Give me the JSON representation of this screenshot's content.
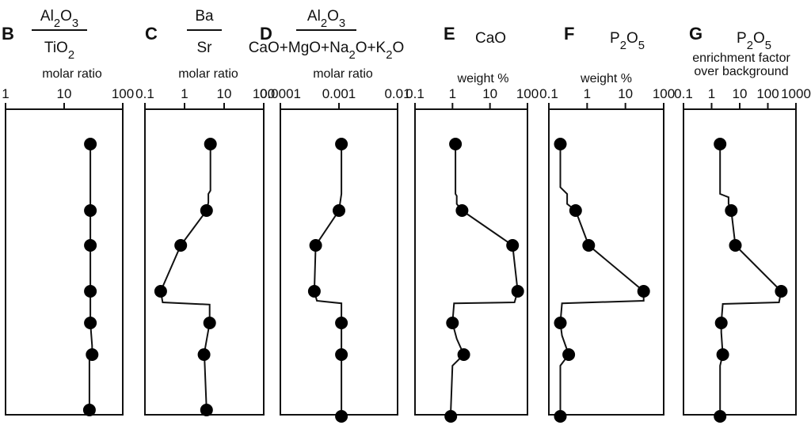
{
  "chart_data": [
    {
      "type": "scatter",
      "panel": "B",
      "title_num": "Al2O3",
      "title_den": "TiO2",
      "subtitle": "molar ratio",
      "xscale": "log",
      "xlim": [
        1,
        100
      ],
      "xticks": [
        1,
        10,
        100
      ],
      "xtick_labels": [
        "1",
        "10",
        "100"
      ],
      "points": [
        28,
        28,
        28,
        28,
        28,
        30,
        27
      ],
      "profile_vertices": [
        [
          28,
          0
        ],
        [
          28,
          1
        ],
        [
          28,
          2
        ],
        [
          28,
          3
        ],
        [
          28,
          4
        ],
        [
          30,
          4.72
        ],
        [
          30,
          5.05
        ],
        [
          27,
          5.1
        ],
        [
          27,
          6
        ]
      ],
      "grid": false
    },
    {
      "type": "scatter",
      "panel": "C",
      "title_num": "Ba",
      "title_den": "Sr",
      "subtitle": "molar ratio",
      "xscale": "log",
      "xlim": [
        0.1,
        100
      ],
      "xticks": [
        0.1,
        1,
        10,
        100
      ],
      "xtick_labels": [
        "0.1",
        "1",
        "10",
        "100"
      ],
      "points": [
        4.5,
        3.6,
        0.8,
        0.25,
        4.3,
        3.1,
        3.6
      ],
      "profile_vertices": [
        [
          4.5,
          0
        ],
        [
          4.5,
          0.7
        ],
        [
          4,
          0.75
        ],
        [
          4,
          0.88
        ],
        [
          3.6,
          1
        ],
        [
          0.8,
          2
        ],
        [
          0.25,
          3
        ],
        [
          0.28,
          3.35
        ],
        [
          4.3,
          3.42
        ],
        [
          4.3,
          4
        ],
        [
          3.1,
          5
        ],
        [
          3.2,
          5.1
        ],
        [
          3.6,
          6
        ]
      ],
      "grid": false
    },
    {
      "type": "scatter",
      "panel": "D",
      "title_num": "Al2O3",
      "title_den": "CaO+MgO+Na2O+K2O",
      "subtitle": "molar ratio",
      "xscale": "log",
      "xlim": [
        0.0001,
        0.01
      ],
      "xticks": [
        0.0001,
        0.001,
        0.01
      ],
      "xtick_labels": [
        "0.0001",
        "0.001",
        "0.01"
      ],
      "points": [
        0.0011,
        0.001,
        0.0004,
        0.00038,
        0.0011,
        0.0011,
        0.0011
      ],
      "profile_vertices": [
        [
          0.0011,
          0
        ],
        [
          0.0011,
          0.75
        ],
        [
          0.001,
          1
        ],
        [
          0.0004,
          2
        ],
        [
          0.00038,
          3
        ],
        [
          0.00042,
          3.3
        ],
        [
          0.0011,
          3.38
        ],
        [
          0.0011,
          6
        ]
      ],
      "grid": false
    },
    {
      "type": "scatter",
      "panel": "E",
      "title": "CaO",
      "subtitle": "weight %",
      "xscale": "log",
      "xlim": [
        0.1,
        100
      ],
      "xticks": [
        0.1,
        1,
        10,
        100
      ],
      "xtick_labels": [
        "0.1",
        "1",
        "10",
        "100"
      ],
      "points": [
        1.2,
        1.8,
        40,
        55,
        1.0,
        2.0,
        0.9
      ],
      "profile_vertices": [
        [
          1.2,
          0
        ],
        [
          1.2,
          0.75
        ],
        [
          1.3,
          0.78
        ],
        [
          1.3,
          0.9
        ],
        [
          1.8,
          1
        ],
        [
          40,
          2
        ],
        [
          55,
          3
        ],
        [
          45,
          3.35
        ],
        [
          1.1,
          3.38
        ],
        [
          1.0,
          4
        ],
        [
          1.3,
          4.5
        ],
        [
          2.0,
          5
        ],
        [
          1.0,
          5.2
        ],
        [
          0.9,
          6
        ]
      ],
      "grid": false
    },
    {
      "type": "scatter",
      "panel": "F",
      "title": "P2O5",
      "subtitle": "weight %",
      "xscale": "log",
      "xlim": [
        0.1,
        100
      ],
      "xticks": [
        0.1,
        1,
        10,
        100
      ],
      "xtick_labels": [
        "0.1",
        "1",
        "10",
        "100"
      ],
      "points": [
        0.2,
        0.5,
        1.1,
        30,
        0.2,
        0.33,
        0.2
      ],
      "profile_vertices": [
        [
          0.2,
          0
        ],
        [
          0.2,
          0.65
        ],
        [
          0.3,
          0.75
        ],
        [
          0.3,
          0.9
        ],
        [
          0.5,
          1
        ],
        [
          1.1,
          2
        ],
        [
          30,
          3
        ],
        [
          30,
          3.3
        ],
        [
          0.22,
          3.38
        ],
        [
          0.2,
          4
        ],
        [
          0.22,
          4.4
        ],
        [
          0.33,
          5
        ],
        [
          0.2,
          5.2
        ],
        [
          0.2,
          6
        ]
      ],
      "grid": false
    },
    {
      "type": "scatter",
      "panel": "G",
      "title": "P2O5",
      "subtitle_lines": [
        "enrichment factor",
        "over background"
      ],
      "xscale": "log",
      "xlim": [
        0.1,
        1000
      ],
      "xticks": [
        0.1,
        1,
        10,
        100,
        1000
      ],
      "xtick_labels": [
        "0.1",
        "1",
        "10",
        "100",
        "1000"
      ],
      "points": [
        2,
        5,
        7,
        300,
        2.2,
        2.5,
        2
      ],
      "profile_vertices": [
        [
          2,
          0
        ],
        [
          2,
          0.75
        ],
        [
          4,
          0.8
        ],
        [
          4,
          0.9
        ],
        [
          5,
          1
        ],
        [
          7,
          2
        ],
        [
          300,
          3
        ],
        [
          250,
          3.35
        ],
        [
          2.5,
          3.4
        ],
        [
          2.2,
          4
        ],
        [
          2.2,
          4.3
        ],
        [
          2.5,
          5
        ],
        [
          2,
          5.2
        ],
        [
          2,
          6
        ]
      ],
      "grid": false
    }
  ]
}
